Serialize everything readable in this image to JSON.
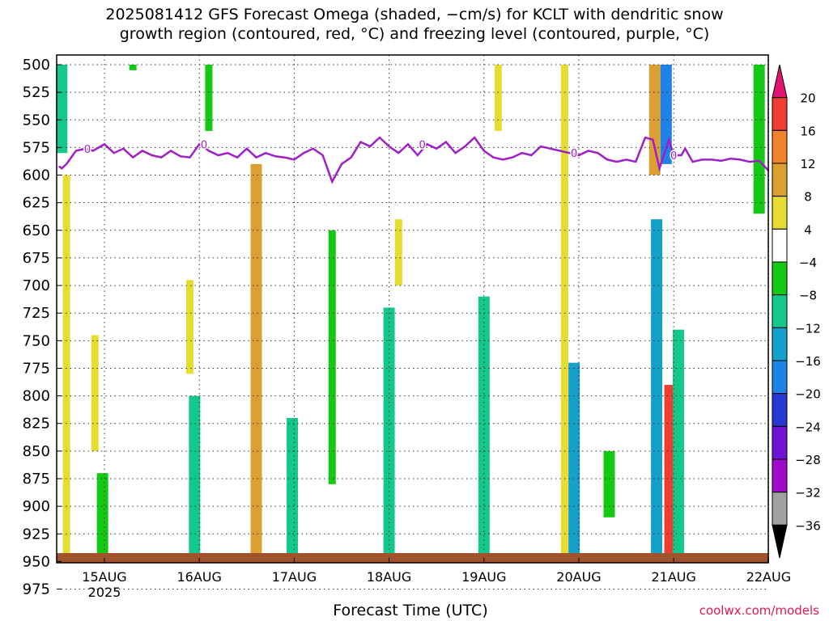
{
  "title_line1": "2025081412 GFS Forecast Omega (shaded, −cm/s) for KCLT with dendritic snow",
  "title_line2": "growth region (contoured, red, °C) and freezing level (contoured, purple, °C)",
  "xlabel": "Forecast Time (UTC)",
  "credit": "coolwx.com/models",
  "chart_data": {
    "type": "heatmap",
    "title": "2025081412 GFS Forecast Omega (shaded, −cm/s) for KCLT with dendritic snow growth region (contoured, red, °C) and freezing level (contoured, purple, °C)",
    "xlabel": "Forecast Time (UTC)",
    "ylabel": "",
    "y_axis": {
      "levels": [
        500,
        525,
        550,
        575,
        600,
        625,
        650,
        675,
        700,
        725,
        750,
        775,
        800,
        825,
        850,
        875,
        900,
        925,
        950,
        975
      ],
      "reversed": true
    },
    "x_axis": {
      "ticks": [
        "15AUG",
        "16AUG",
        "17AUG",
        "18AUG",
        "19AUG",
        "20AUG",
        "21AUG",
        "22AUG"
      ],
      "year_label": "2025",
      "range_days": [
        -0.48,
        7.0
      ]
    },
    "grid": true,
    "colorbar": {
      "labels": [
        20,
        16,
        12,
        8,
        4,
        -4,
        -8,
        -12,
        -16,
        -20,
        -24,
        -28,
        -32,
        -36
      ],
      "colors": [
        "#e3146e",
        "#f03c32",
        "#f0822d",
        "#dca032",
        "#e6dc32",
        "#ffffff",
        "#14c814",
        "#14c88c",
        "#14a0c8",
        "#1e82e6",
        "#2837d2",
        "#6e14d2",
        "#a00ac8",
        "#a0a0a0",
        "#000000"
      ]
    },
    "freezing_level": {
      "label": "0",
      "day": [
        -0.48,
        -0.45,
        -0.4,
        -0.3,
        -0.2,
        -0.12,
        0,
        0.1,
        0.2,
        0.3,
        0.4,
        0.5,
        0.6,
        0.7,
        0.8,
        0.9,
        1.0,
        1.1,
        1.2,
        1.3,
        1.4,
        1.5,
        1.6,
        1.7,
        1.8,
        1.9,
        2.0,
        2.1,
        2.2,
        2.3,
        2.4,
        2.5,
        2.6,
        2.7,
        2.8,
        2.9,
        3.0,
        3.1,
        3.2,
        3.3,
        3.4,
        3.5,
        3.6,
        3.7,
        3.8,
        3.9,
        4.0,
        4.1,
        4.2,
        4.3,
        4.4,
        4.5,
        4.6,
        4.7,
        4.8,
        4.9,
        5.0,
        5.1,
        5.2,
        5.3,
        5.4,
        5.5,
        5.6,
        5.7,
        5.78,
        5.85,
        5.95,
        6.0,
        6.08,
        6.12,
        6.2,
        6.3,
        6.4,
        6.5,
        6.6,
        6.7,
        6.8,
        6.9,
        7.0
      ],
      "level": [
        592,
        594,
        590,
        578,
        576,
        578,
        572,
        580,
        576,
        584,
        578,
        582,
        584,
        578,
        583,
        584,
        572,
        578,
        582,
        580,
        584,
        576,
        584,
        580,
        583,
        584,
        586,
        580,
        576,
        582,
        606,
        590,
        584,
        570,
        574,
        566,
        574,
        580,
        572,
        582,
        572,
        576,
        570,
        580,
        574,
        566,
        578,
        584,
        586,
        584,
        580,
        582,
        574,
        576,
        578,
        580,
        582,
        578,
        580,
        586,
        588,
        586,
        588,
        566,
        568,
        594,
        568,
        582,
        582,
        576,
        588,
        586,
        586,
        587,
        585,
        586,
        588,
        587,
        596
      ]
    },
    "surface_fill": {
      "label": "ground",
      "color": "#a0522d"
    },
    "omega_patches": [
      {
        "day": -0.45,
        "top": 500,
        "bottom": 580,
        "value": -10
      },
      {
        "day": -0.4,
        "top": 600,
        "bottom": 950,
        "value": 5
      },
      {
        "day": -0.1,
        "top": 745,
        "bottom": 850,
        "value": 5
      },
      {
        "day": -0.02,
        "top": 870,
        "bottom": 965,
        "value": -8
      },
      {
        "day": 0.3,
        "top": 500,
        "bottom": 505,
        "value": -6
      },
      {
        "day": 0.9,
        "top": 695,
        "bottom": 780,
        "value": 6
      },
      {
        "day": 0.95,
        "top": 800,
        "bottom": 965,
        "value": -12
      },
      {
        "day": 1.1,
        "top": 500,
        "bottom": 560,
        "value": -6
      },
      {
        "day": 1.6,
        "top": 590,
        "bottom": 965,
        "value": 10
      },
      {
        "day": 1.98,
        "top": 820,
        "bottom": 965,
        "value": -10
      },
      {
        "day": 2.4,
        "top": 650,
        "bottom": 880,
        "value": -6
      },
      {
        "day": 3.0,
        "top": 720,
        "bottom": 960,
        "value": -12
      },
      {
        "day": 3.1,
        "top": 640,
        "bottom": 700,
        "value": 5
      },
      {
        "day": 4.0,
        "top": 710,
        "bottom": 960,
        "value": -10
      },
      {
        "day": 4.15,
        "top": 500,
        "bottom": 560,
        "value": 5
      },
      {
        "day": 4.85,
        "top": 500,
        "bottom": 955,
        "value": 6
      },
      {
        "day": 4.95,
        "top": 770,
        "bottom": 960,
        "value": -14
      },
      {
        "day": 5.32,
        "top": 850,
        "bottom": 910,
        "value": -8
      },
      {
        "day": 5.8,
        "top": 500,
        "bottom": 600,
        "value": 10
      },
      {
        "day": 5.82,
        "top": 640,
        "bottom": 960,
        "value": -16
      },
      {
        "day": 5.92,
        "top": 500,
        "bottom": 590,
        "value": -18
      },
      {
        "day": 5.96,
        "top": 790,
        "bottom": 950,
        "value": 18
      },
      {
        "day": 6.05,
        "top": 740,
        "bottom": 950,
        "value": -10
      },
      {
        "day": 6.9,
        "top": 500,
        "bottom": 635,
        "value": -8
      }
    ]
  }
}
